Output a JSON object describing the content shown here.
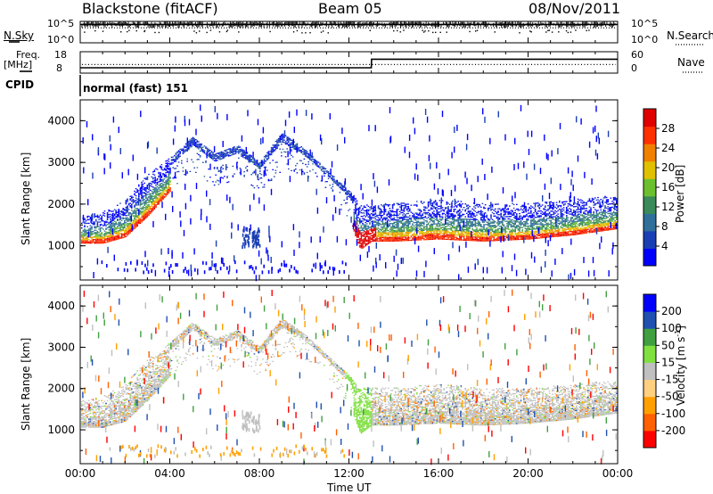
{
  "header": {
    "station": "Blackstone (fitACF)",
    "beam": "Beam 05",
    "date": "08/Nov/2011"
  },
  "panel_labels": {
    "nsky": "N.Sky",
    "nsky_ticks": [
      "10^5",
      "10^0"
    ],
    "nsearch": "N.Search",
    "nsearch_ticks": [
      "10^5",
      "10^0"
    ],
    "freq": "Freq.",
    "freq_unit": "[MHz]",
    "freq_ticks": [
      "18",
      "8"
    ],
    "nave": "Nave",
    "nave_ticks": [
      "60",
      "0"
    ],
    "cpid": "CPID",
    "cpid_value": "normal (fast) 151"
  },
  "colors": {
    "power_scale": [
      "#0000ff",
      "#1a3fb5",
      "#2f6f9a",
      "#3a8a5a",
      "#6cc030",
      "#e0c000",
      "#f08000",
      "#ff3000",
      "#e00000"
    ],
    "velocity_scale": [
      "#ff0000",
      "#ff6000",
      "#ffa000",
      "#ffd080",
      "#c0c0c0",
      "#80e040",
      "#40a040",
      "#2050b0",
      "#0000ff"
    ],
    "trace": "#000000"
  },
  "chart_data": [
    {
      "type": "line",
      "title": "N.Sky / N.Search",
      "x": [
        0,
        24
      ],
      "series": [
        {
          "name": "N.Sky",
          "values": [
            4.3,
            4.3
          ]
        },
        {
          "name": "N.Search",
          "values": [
            3.5,
            3.5
          ]
        }
      ],
      "ylim": [
        0,
        5
      ],
      "xlabel": "",
      "ylabel": ""
    },
    {
      "type": "line",
      "title": "Freq. [MHz] / Nave",
      "x": [
        0,
        13.0,
        13.01,
        24
      ],
      "series": [
        {
          "name": "Freq.",
          "values": [
            10.5,
            10.5,
            14.5,
            14.5
          ]
        },
        {
          "name": "Nave",
          "values": [
            12,
            12,
            12,
            12
          ]
        }
      ],
      "ylim": [
        8,
        18
      ],
      "xlabel": "",
      "ylabel": ""
    },
    {
      "type": "heatmap",
      "title": "Power [dB]",
      "ylabel": "Slant Range [km]",
      "ylim": [
        180,
        4500
      ],
      "yticks": [
        1000,
        2000,
        3000,
        4000
      ],
      "xlim": [
        0,
        24
      ],
      "colorbar_label": "Power [dB]",
      "colorbar_ticks": [
        "4",
        "8",
        "12",
        "16",
        "20",
        "24",
        "28"
      ],
      "echo_band_km": {
        "hours": [
          0,
          1,
          2,
          3,
          4,
          5,
          6,
          7,
          8,
          9,
          10,
          11,
          12,
          12.5,
          13,
          14,
          16,
          18,
          20,
          22,
          24
        ],
        "lower": [
          1050,
          1050,
          1200,
          1700,
          2300,
          2800,
          2400,
          2600,
          2300,
          2800,
          2700,
          2300,
          1600,
          900,
          1100,
          1100,
          1150,
          1100,
          1150,
          1250,
          1400
        ],
        "upper": [
          1700,
          1800,
          2100,
          2700,
          3100,
          3600,
          3200,
          3400,
          3000,
          3700,
          3300,
          2800,
          2300,
          2000,
          2000,
          2000,
          2100,
          2000,
          2000,
          2100,
          2200
        ]
      }
    },
    {
      "type": "heatmap",
      "title": "Velocity [m s^-1]",
      "ylabel": "Slant Range [km]",
      "xlabel": "Time UT",
      "ylim": [
        180,
        4500
      ],
      "yticks": [
        1000,
        2000,
        3000,
        4000
      ],
      "xlim": [
        0,
        24
      ],
      "xticklabels": [
        "00:00",
        "04:00",
        "08:00",
        "12:00",
        "16:00",
        "20:00",
        "00:00"
      ],
      "colorbar_label": "Velocity [m s",
      "colorbar_sup": "-1",
      "colorbar_ticks": [
        "-200",
        "-100",
        "-50",
        "-15",
        "15",
        "50",
        "100",
        "200"
      ]
    }
  ]
}
